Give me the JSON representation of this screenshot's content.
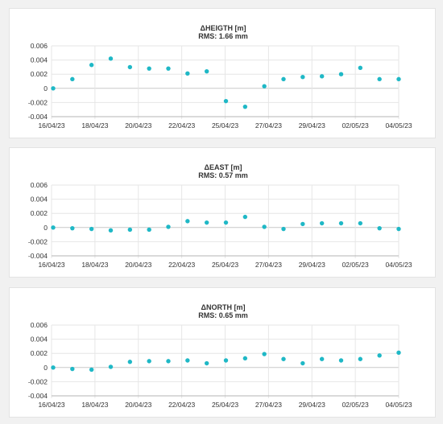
{
  "colors": {
    "point": "#1fb8c6",
    "grid": "#e6e6e6",
    "axis": "#b5b5b5",
    "zero_line": "#c8c8c8"
  },
  "chart_data": [
    {
      "type": "scatter",
      "title": "ΔHEIGTH [m]",
      "subtitle": "RMS: 1.66 mm",
      "ylim": [
        -0.004,
        0.006
      ],
      "yticks": [
        "0.006",
        "0.004",
        "0.002",
        "0",
        "-0.002",
        "-0.004"
      ],
      "xticks": [
        "16/04/23",
        "18/04/23",
        "20/04/23",
        "22/04/23",
        "25/04/23",
        "27/04/23",
        "29/04/23",
        "02/05/23",
        "04/05/23"
      ],
      "grid": true,
      "y": [
        0.0,
        0.0013,
        0.0033,
        0.0042,
        0.003,
        0.0028,
        0.0028,
        0.0021,
        0.0024,
        -0.0018,
        -0.0026,
        0.0003,
        0.0013,
        0.0016,
        0.0017,
        0.002,
        0.0029,
        0.0013,
        0.0013
      ]
    },
    {
      "type": "scatter",
      "title": "ΔEAST [m]",
      "subtitle": "RMS: 0.57 mm",
      "ylim": [
        -0.004,
        0.006
      ],
      "yticks": [
        "0.006",
        "0.004",
        "0.002",
        "0",
        "-0.002",
        "-0.004"
      ],
      "xticks": [
        "16/04/23",
        "18/04/23",
        "20/04/23",
        "22/04/23",
        "25/04/23",
        "27/04/23",
        "29/04/23",
        "02/05/23",
        "04/05/23"
      ],
      "grid": true,
      "y": [
        0.0,
        -0.0001,
        -0.0002,
        -0.0004,
        -0.0003,
        -0.0003,
        0.0001,
        0.0009,
        0.0007,
        0.0007,
        0.0015,
        0.0001,
        -0.0002,
        0.0005,
        0.0006,
        0.0006,
        0.0006,
        -0.0001,
        -0.0002
      ]
    },
    {
      "type": "scatter",
      "title": "ΔNORTH [m]",
      "subtitle": "RMS: 0.65 mm",
      "ylim": [
        -0.004,
        0.006
      ],
      "yticks": [
        "0.006",
        "0.004",
        "0.002",
        "0",
        "-0.002",
        "-0.004"
      ],
      "xticks": [
        "16/04/23",
        "18/04/23",
        "20/04/23",
        "22/04/23",
        "25/04/23",
        "27/04/23",
        "29/04/23",
        "02/05/23",
        "04/05/23"
      ],
      "grid": true,
      "y": [
        0.0,
        -0.0002,
        -0.0003,
        0.0001,
        0.0008,
        0.0009,
        0.0009,
        0.001,
        0.0006,
        0.001,
        0.0013,
        0.0019,
        0.0012,
        0.0006,
        0.0012,
        0.001,
        0.0012,
        0.0017,
        0.0021
      ]
    }
  ]
}
